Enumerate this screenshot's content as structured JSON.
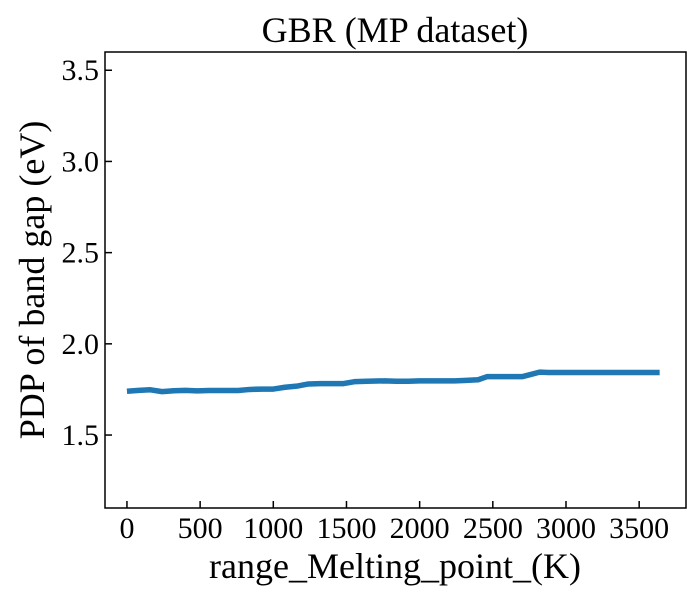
{
  "chart_data": {
    "type": "line",
    "title": "GBR (MP dataset)",
    "xlabel": "range_Melting_point_(K)",
    "ylabel": "PDP of band gap (eV)",
    "xlim": [
      -150,
      3820
    ],
    "ylim": [
      1.1,
      3.6
    ],
    "xticks": [
      0,
      500,
      1000,
      1500,
      2000,
      2500,
      3000,
      3500
    ],
    "xtick_labels": [
      "0",
      "500",
      "1000",
      "1500",
      "2000",
      "2500",
      "3000",
      "3500"
    ],
    "yticks": [
      1.5,
      2.0,
      2.5,
      3.0,
      3.5
    ],
    "ytick_labels": [
      "1.5",
      "2.0",
      "2.5",
      "3.0",
      "3.5"
    ],
    "grid": false,
    "series_color": "#1f77b4",
    "series": [
      {
        "x": [
          0,
          80,
          160,
          240,
          320,
          400,
          480,
          560,
          640,
          760,
          840,
          920,
          1000,
          1080,
          1160,
          1240,
          1320,
          1400,
          1480,
          1560,
          1640,
          1760,
          1840,
          1920,
          2000,
          2080,
          2160,
          2240,
          2320,
          2400,
          2460,
          2540,
          2620,
          2700,
          2760,
          2820,
          2880,
          2960,
          3040,
          3120,
          3200,
          3300,
          3400,
          3500,
          3640
        ],
        "y": [
          1.74,
          1.745,
          1.748,
          1.738,
          1.743,
          1.745,
          1.742,
          1.744,
          1.744,
          1.744,
          1.75,
          1.752,
          1.752,
          1.762,
          1.768,
          1.78,
          1.782,
          1.782,
          1.782,
          1.793,
          1.795,
          1.797,
          1.795,
          1.795,
          1.797,
          1.797,
          1.797,
          1.797,
          1.8,
          1.803,
          1.82,
          1.82,
          1.82,
          1.82,
          1.832,
          1.845,
          1.843,
          1.843,
          1.843,
          1.843,
          1.843,
          1.843,
          1.843,
          1.843,
          1.843
        ]
      }
    ]
  }
}
